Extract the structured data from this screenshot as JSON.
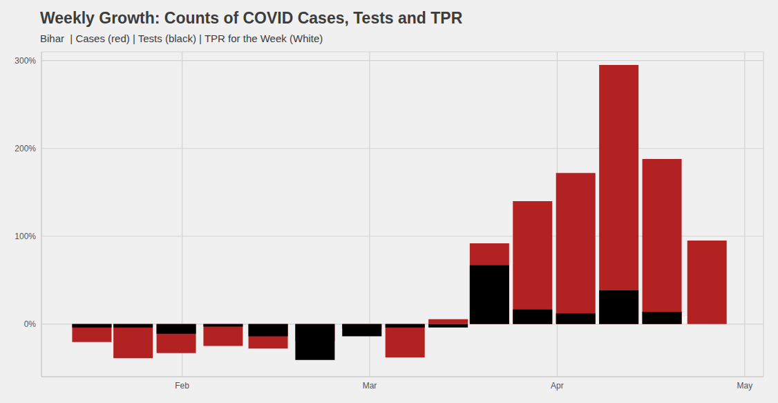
{
  "chart_data": {
    "type": "bar",
    "title": "Weekly Growth: Counts of COVID Cases, Tests and TPR",
    "subtitle": "Bihar  | Cases (red) | Tests (black) | TPR for the Week (White)",
    "x": [
      1.52,
      1.74,
      1.97,
      2.22,
      2.46,
      2.71,
      2.96,
      3.19,
      3.42,
      3.64,
      3.87,
      4.1,
      4.33,
      4.56,
      4.8
    ],
    "xlim": [
      1.25,
      5.1
    ],
    "xticks": [
      {
        "value": 2,
        "label": "Feb"
      },
      {
        "value": 3,
        "label": "Mar"
      },
      {
        "value": 4,
        "label": "Apr"
      },
      {
        "value": 5,
        "label": "May"
      }
    ],
    "ylim": [
      -60,
      310
    ],
    "yticks": [
      {
        "value": 0,
        "label": "0%"
      },
      {
        "value": 100,
        "label": "100%"
      },
      {
        "value": 200,
        "label": "200%"
      },
      {
        "value": 300,
        "label": "300%"
      }
    ],
    "grid": true,
    "series": [
      {
        "name": "Cases",
        "type": "bar",
        "color": "#b22222",
        "values": [
          -20.5,
          -39,
          -33,
          -25,
          -28,
          -20,
          -5,
          -38,
          5.5,
          92,
          140,
          172,
          295,
          188,
          95
        ]
      },
      {
        "name": "Tests",
        "type": "bar",
        "color": "#000000",
        "values": [
          -4,
          -4,
          -11,
          -3,
          -14,
          -41,
          -14,
          -4,
          -4,
          67,
          16.5,
          12,
          38.5,
          14,
          0
        ]
      },
      {
        "name": "TPR",
        "type": "area",
        "color": "#ffffff",
        "line_style": "dashed",
        "values": [
          null,
          null,
          null,
          null,
          null,
          null,
          null,
          null,
          0.5,
          0.6,
          0.8,
          1,
          2.5,
          5,
          11
        ]
      }
    ]
  }
}
